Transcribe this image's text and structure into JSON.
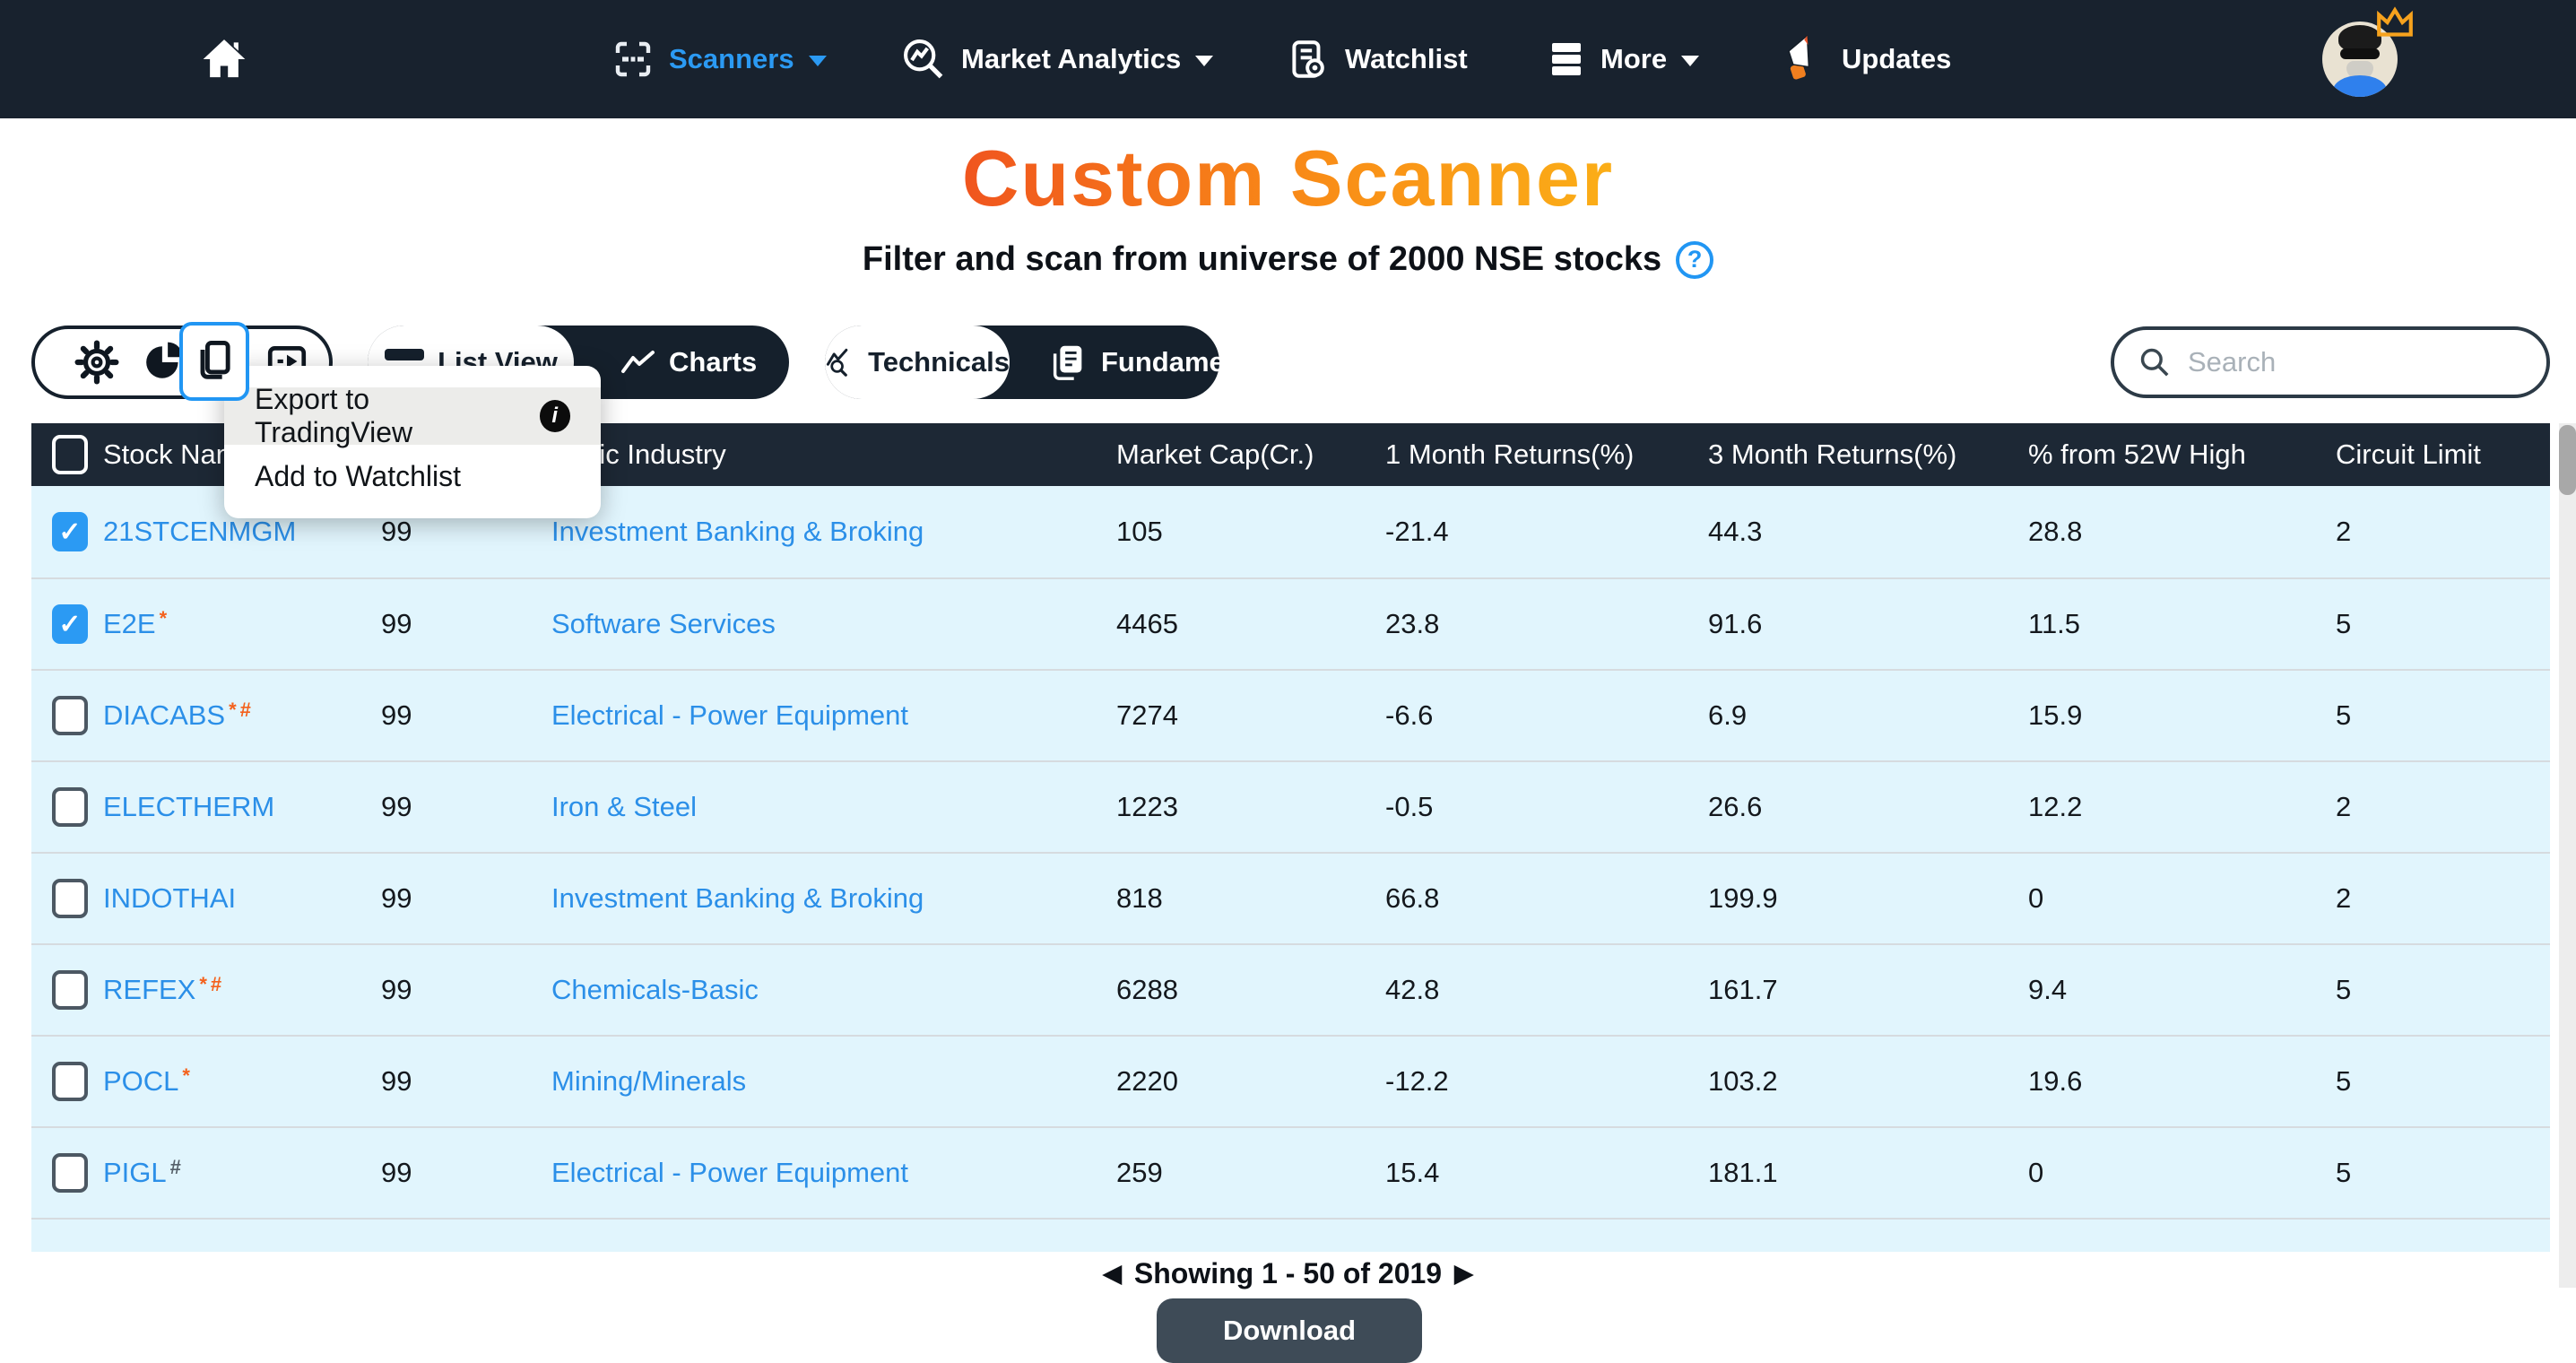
{
  "nav": {
    "items": [
      {
        "label": "Scanners",
        "active": true
      },
      {
        "label": "Market Analytics"
      },
      {
        "label": "Watchlist"
      },
      {
        "label": "More"
      },
      {
        "label": "Updates"
      }
    ]
  },
  "header": {
    "title": "Custom Scanner",
    "subtitle": "Filter and scan from universe of 2000 NSE stocks",
    "help_glyph": "?"
  },
  "toolbar": {
    "view_tabs": [
      {
        "label": "List View",
        "selected": true
      },
      {
        "label": "Charts",
        "selected": false
      }
    ],
    "data_tabs": [
      {
        "label": "Technicals",
        "selected": true
      },
      {
        "label": "Fundamentals",
        "selected": false
      }
    ],
    "search_placeholder": "Search"
  },
  "menu": {
    "items": [
      {
        "label": "Export to TradingView",
        "info": true,
        "highlighted": true
      },
      {
        "label": "Add to Watchlist",
        "info": false,
        "highlighted": false
      }
    ],
    "info_glyph": "i"
  },
  "table": {
    "headers": [
      "Stock Name",
      "",
      "Basic Industry",
      "Market Cap(Cr.)",
      "1 Month Returns(%)",
      "3 Month Returns(%)",
      "% from 52W High",
      "Circuit Limit"
    ],
    "rows": [
      {
        "ticker": "21STCENMGM",
        "marks": [],
        "checked": true,
        "score": "99",
        "industry": "Investment Banking & Broking",
        "mcap": "105",
        "r1m": "-21.4",
        "r3m": "44.3",
        "off52w": "28.8",
        "circuit": "2"
      },
      {
        "ticker": "E2E",
        "marks": [
          {
            "t": "*",
            "color": "#f4611c"
          }
        ],
        "checked": true,
        "score": "99",
        "industry": "Software Services",
        "mcap": "4465",
        "r1m": "23.8",
        "r3m": "91.6",
        "off52w": "11.5",
        "circuit": "5"
      },
      {
        "ticker": "DIACABS",
        "marks": [
          {
            "t": "*",
            "color": "#f4611c"
          },
          {
            "t": "#",
            "color": "#f4611c"
          }
        ],
        "checked": false,
        "score": "99",
        "industry": "Electrical - Power Equipment",
        "mcap": "7274",
        "r1m": "-6.6",
        "r3m": "6.9",
        "off52w": "15.9",
        "circuit": "5"
      },
      {
        "ticker": "ELECTHERM",
        "marks": [],
        "checked": false,
        "score": "99",
        "industry": "Iron & Steel",
        "mcap": "1223",
        "r1m": "-0.5",
        "r3m": "26.6",
        "off52w": "12.2",
        "circuit": "2"
      },
      {
        "ticker": "INDOTHAI",
        "marks": [],
        "checked": false,
        "score": "99",
        "industry": "Investment Banking & Broking",
        "mcap": "818",
        "r1m": "66.8",
        "r3m": "199.9",
        "off52w": "0",
        "circuit": "2"
      },
      {
        "ticker": "REFEX",
        "marks": [
          {
            "t": "*",
            "color": "#f4611c"
          },
          {
            "t": "#",
            "color": "#f4611c"
          }
        ],
        "checked": false,
        "score": "99",
        "industry": "Chemicals-Basic",
        "mcap": "6288",
        "r1m": "42.8",
        "r3m": "161.7",
        "off52w": "9.4",
        "circuit": "5"
      },
      {
        "ticker": "POCL",
        "marks": [
          {
            "t": "*",
            "color": "#f4611c"
          }
        ],
        "checked": false,
        "score": "99",
        "industry": "Mining/Minerals",
        "mcap": "2220",
        "r1m": "-12.2",
        "r3m": "103.2",
        "off52w": "19.6",
        "circuit": "5"
      },
      {
        "ticker": "PIGL",
        "marks": [
          {
            "t": "#",
            "color": "#566069"
          }
        ],
        "checked": false,
        "score": "99",
        "industry": "Electrical - Power Equipment",
        "mcap": "259",
        "r1m": "15.4",
        "r3m": "181.1",
        "off52w": "0",
        "circuit": "5"
      }
    ],
    "check_glyph": "✓"
  },
  "pagination": {
    "prev": "◀",
    "text": "Showing 1 - 50 of 2019",
    "next": "▶"
  },
  "download_label": "Download",
  "colors": {
    "nav_bg": "#18222e",
    "accent_blue": "#2196f3",
    "link_blue": "#2b8fe8",
    "row_bg": "#e1f5fd",
    "header_bg": "#1d2835",
    "flag_orange": "#f4611c",
    "title_gradient_start": "#f0551e",
    "title_gradient_end": "#fbae17",
    "download_bg": "#3e4b57"
  }
}
